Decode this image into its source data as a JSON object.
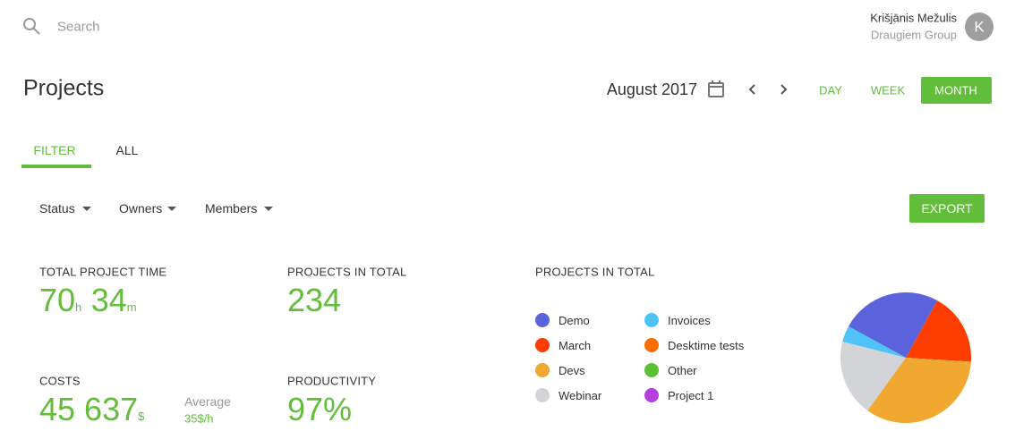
{
  "header": {
    "search_placeholder": "Search",
    "user_name": "Krišjānis Mežulis",
    "user_company": "Draugiem Group",
    "avatar_initial": "K"
  },
  "toolbar": {
    "title": "Projects",
    "period": "August 2017",
    "ranges": [
      "DAY",
      "WEEK",
      "MONTH"
    ]
  },
  "tabs": [
    "FILTER",
    "ALL"
  ],
  "filters": [
    "Status",
    "Owners",
    "Members"
  ],
  "export": "EXPORT",
  "stats": {
    "total_time": {
      "label": "TOTAL PROJECT TIME",
      "hours": "70",
      "hours_unit": "h",
      "minutes": "34",
      "minutes_unit": "m"
    },
    "projects": {
      "label": "PROJECTS IN TOTAL",
      "value": "234"
    },
    "costs": {
      "label": "COSTS",
      "value": "45 637",
      "unit": "$",
      "average_label": "Average",
      "average_value": "35$/h"
    },
    "productivity": {
      "label": "PRODUCTIVITY",
      "value": "97%"
    }
  },
  "chart_data": {
    "type": "pie",
    "title": "PROJECTS IN TOTAL",
    "categories": [
      "Demo",
      "March",
      "Devs",
      "Webinar",
      "Invoices",
      "Desktime tests",
      "Other",
      "Project 1"
    ],
    "colors": [
      "#5b63dc",
      "#ff3d00",
      "#f0a830",
      "#d2d4d8",
      "#4fc3f7",
      "#ff6d00",
      "#5bc236",
      "#b53fdc"
    ],
    "values": [
      25,
      18,
      34,
      19,
      4,
      0,
      0,
      0
    ]
  }
}
